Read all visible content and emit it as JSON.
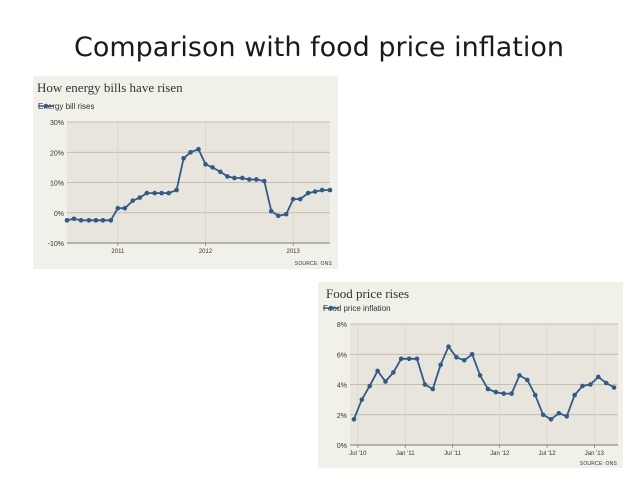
{
  "slide": {
    "title": "Comparison with food price inflation"
  },
  "chart_data": [
    {
      "type": "line",
      "title": "How energy bills have risen",
      "legend": "Energy bill rises",
      "legend_placement": "top-left",
      "source": "SOURCE: ONS",
      "ylim": [
        -10,
        30
      ],
      "yticks": [
        30,
        20,
        10,
        0,
        -10
      ],
      "ytick_labels": [
        "30%",
        "20%",
        "10%",
        "0%",
        "-10%"
      ],
      "xticks": [
        {
          "label": "2011",
          "x": 2011
        },
        {
          "label": "2012",
          "x": 2012
        },
        {
          "label": "2013",
          "x": 2013
        }
      ],
      "xlim": [
        2010.42,
        2013.42
      ],
      "grid": true,
      "color": "#2f5a8a",
      "series": [
        {
          "x": [
            2010.42,
            2010.5,
            2010.58,
            2010.67,
            2010.75,
            2010.83,
            2010.92,
            2011.0,
            2011.08,
            2011.17,
            2011.25,
            2011.33,
            2011.42,
            2011.5,
            2011.58,
            2011.67,
            2011.75,
            2011.83,
            2011.92,
            2012.0,
            2012.08,
            2012.17,
            2012.25,
            2012.33,
            2012.42,
            2012.5,
            2012.58,
            2012.67,
            2012.75,
            2012.83,
            2012.92,
            2013.0,
            2013.08,
            2013.17,
            2013.25,
            2013.33,
            2013.42
          ],
          "values": [
            -2.5,
            -2,
            -2.5,
            -2.5,
            -2.5,
            -2.5,
            -2.5,
            1.5,
            1.5,
            4,
            5,
            6.5,
            6.5,
            6.5,
            6.5,
            7.5,
            18,
            20,
            21,
            16,
            15,
            13.5,
            12,
            11.5,
            11.5,
            11,
            11,
            10.5,
            0.5,
            -1,
            -0.5,
            4.5,
            4.5,
            6.5,
            7,
            7.5,
            7.5
          ]
        }
      ]
    },
    {
      "type": "line",
      "title": "Food price rises",
      "legend": "Food price inflation",
      "legend_placement": "top-left",
      "source": "SOURCE: ONS",
      "ylim": [
        0,
        8
      ],
      "yticks": [
        8,
        6,
        4,
        2,
        0
      ],
      "ytick_labels": [
        "8%",
        "6%",
        "4%",
        "2%",
        "0%"
      ],
      "xticks": [
        {
          "label": "Jul '10",
          "x": 0
        },
        {
          "label": "Jan '11",
          "x": 6
        },
        {
          "label": "Jul '11",
          "x": 12
        },
        {
          "label": "Jan '12",
          "x": 18
        },
        {
          "label": "Jul '12",
          "x": 24
        },
        {
          "label": "Jan '13",
          "x": 30
        }
      ],
      "xlim": [
        -1,
        33
      ],
      "grid": true,
      "color": "#2f5a8a",
      "series": [
        {
          "x": [
            -0.5,
            0.5,
            1.5,
            2.5,
            3.5,
            4.5,
            5.5,
            6.5,
            7.5,
            8.5,
            9.5,
            10.5,
            11.5,
            12.5,
            13.5,
            14.5,
            15.5,
            16.5,
            17.5,
            18.5,
            19.5,
            20.5,
            21.5,
            22.5,
            23.5,
            24.5,
            25.5,
            26.5,
            27.5,
            28.5,
            29.5,
            30.5,
            31.5,
            32.5
          ],
          "values": [
            1.7,
            3,
            3.9,
            4.9,
            4.2,
            4.8,
            5.7,
            5.7,
            5.7,
            4.0,
            3.7,
            5.3,
            6.5,
            5.8,
            5.6,
            6.0,
            4.6,
            3.7,
            3.5,
            3.4,
            3.4,
            4.6,
            4.3,
            3.3,
            2.0,
            1.7,
            2.1,
            1.9,
            3.3,
            3.9,
            4.0,
            4.5,
            4.1,
            3.8
          ]
        }
      ]
    }
  ]
}
